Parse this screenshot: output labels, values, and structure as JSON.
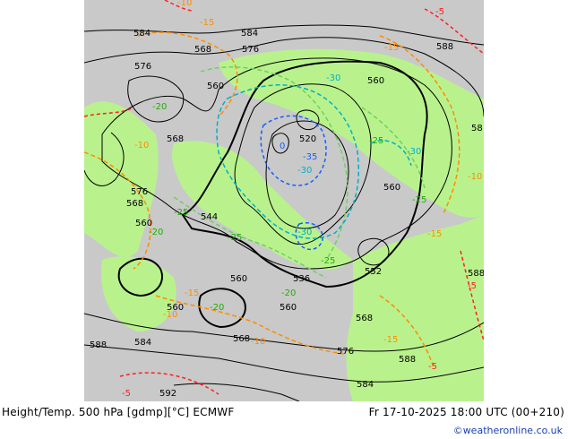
{
  "footer": {
    "title": "Height/Temp. 500 hPa [gdmp][°C] ECMWF",
    "datetime": "Fr 17-10-2025 18:00 UTC (00+210)"
  },
  "credit": "©weatheronline.co.uk",
  "colors": {
    "map_background": "#c9c9c9",
    "land": "#b9f28d",
    "height_contour": "#000000",
    "temp_warm": "#ff8c00",
    "temp_hot": "#ff2020",
    "temp_cool": "#70d060",
    "temp_cold": "#00b0c8",
    "temp_colder": "#1060ff",
    "credit_text": "#1a3fb0"
  },
  "height_labels": [
    "584",
    "584",
    "568",
    "576",
    "576",
    "560",
    "560",
    "588",
    "58",
    "568",
    "520",
    "560",
    "576",
    "568",
    "560",
    "544",
    "552",
    "560",
    "536",
    "588",
    "560",
    "560",
    "568",
    "588",
    "584",
    "568",
    "576",
    "588",
    "584",
    "592"
  ],
  "temp_labels": {
    "orange": [
      "-10",
      "-15",
      "-15",
      "-10",
      "-15",
      "-15",
      "-10",
      "-15",
      "-10",
      "-10",
      "-5",
      "-5",
      "-5",
      "-5"
    ],
    "green": [
      "-20",
      "-20",
      "-25",
      "-20",
      "-20",
      "-25",
      "-25",
      "-25",
      "-25"
    ],
    "cyan": [
      "-30",
      "-30",
      "-30",
      "-30"
    ],
    "blue": [
      "-35",
      "0"
    ]
  }
}
